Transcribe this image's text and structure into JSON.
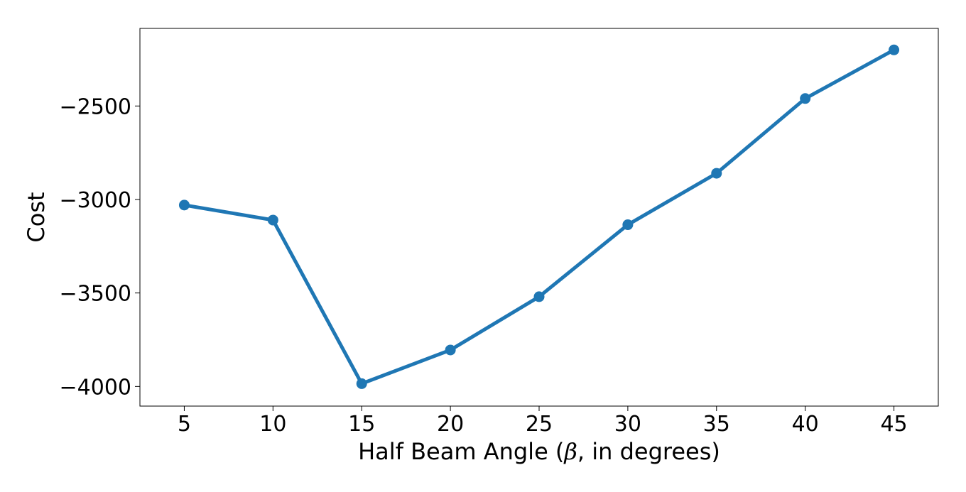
{
  "chart_data": {
    "type": "line",
    "x": [
      5,
      10,
      15,
      20,
      25,
      30,
      35,
      40,
      45
    ],
    "series": [
      {
        "values": [
          -3030,
          -3110,
          -3985,
          -3805,
          -3520,
          -3135,
          -2860,
          -2460,
          -2200
        ]
      }
    ],
    "xlabel": {
      "before": "Half Beam Angle (",
      "symbol": "β",
      "after": ", in degrees)"
    },
    "ylabel": "Cost",
    "xticks": [
      5,
      10,
      15,
      20,
      25,
      30,
      35,
      40,
      45
    ],
    "yticks": [
      -4000,
      -3500,
      -3000,
      -2500
    ],
    "ytick_labels": [
      "−4000",
      "−3500",
      "−3000",
      "−2500"
    ],
    "xlim": [
      2.5,
      47.5
    ],
    "ylim": [
      -4105,
      -2085
    ],
    "grid": false,
    "legend": "none",
    "line_color": "#1f77b4"
  }
}
